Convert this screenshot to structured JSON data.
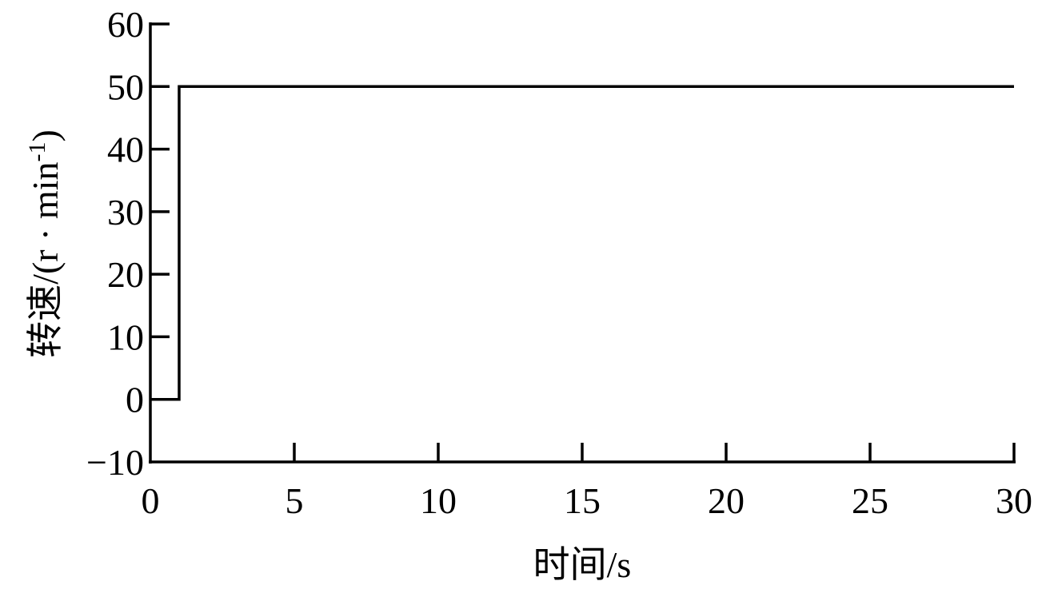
{
  "chart_data": {
    "type": "line",
    "title": "",
    "xlabel": "时间/s",
    "ylabel_main": "转速/(r · min",
    "ylabel_sup": "-1",
    "ylabel_close": ")",
    "xlim": [
      0,
      30
    ],
    "ylim": [
      -10,
      60
    ],
    "xticks": [
      0,
      5,
      10,
      15,
      20,
      25,
      30
    ],
    "yticks": [
      -10,
      0,
      10,
      20,
      30,
      40,
      50,
      60
    ],
    "xtick_labels": [
      "0",
      "5",
      "10",
      "15",
      "20",
      "25",
      "30"
    ],
    "ytick_labels": [
      "−10",
      "0",
      "10",
      "20",
      "30",
      "40",
      "50",
      "60"
    ],
    "grid": false,
    "line_color": "#000000",
    "series": [
      {
        "x": [
          0,
          1,
          1,
          30
        ],
        "y": [
          0,
          0,
          50,
          50
        ]
      }
    ]
  }
}
